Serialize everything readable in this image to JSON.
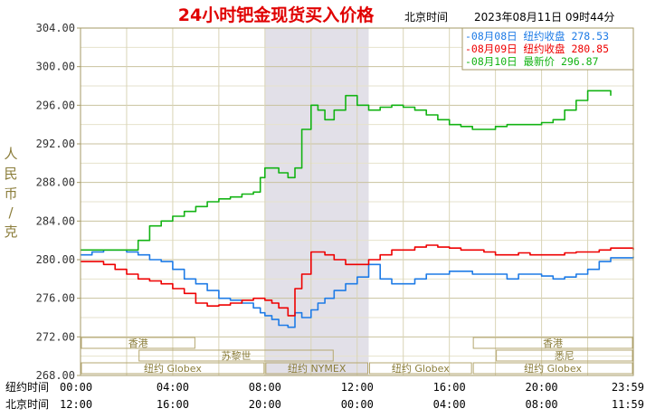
{
  "header": {
    "title": "24小时钯金现货买入价格",
    "tz_label": "北京时间",
    "datetime": "2023年08月11日 09时44分"
  },
  "legend": [
    {
      "marker": "-",
      "date": "08月08日",
      "label": "纽约收盘",
      "value": "278.53",
      "color": "#1e7be6"
    },
    {
      "marker": "-",
      "date": "08月09日",
      "label": "纽约收盘",
      "value": "280.85",
      "color": "#ee0000"
    },
    {
      "marker": "-",
      "date": "08月10日",
      "label": "最新价",
      "value": "296.87",
      "color": "#13b313"
    }
  ],
  "axes": {
    "ylabel": "人民币/克",
    "row1_label": "纽约时间",
    "row2_label": "北京时间"
  },
  "chart_data": {
    "type": "line",
    "ylim": [
      268,
      304
    ],
    "y_ticks": [
      "304.00",
      "300.00",
      "296.00",
      "292.00",
      "288.00",
      "284.00",
      "280.00",
      "276.00",
      "272.00",
      "268.00"
    ],
    "x_ticks_ny": [
      "00:00",
      "04:00",
      "08:00",
      "12:00",
      "16:00",
      "20:00",
      "23:59"
    ],
    "x_ticks_bj": [
      "12:00",
      "16:00",
      "20:00",
      "00:00",
      "04:00",
      "08:00",
      "11:59"
    ],
    "x_range_hours": [
      0,
      23.98
    ],
    "grid": true,
    "legend_position": "top-right",
    "highlight_hours": [
      8,
      12.5
    ],
    "highlight_color": "#e2e0e8",
    "sessions": {
      "row1": [
        {
          "name": "香港",
          "from": 0,
          "to": 5
        },
        {
          "name": "香港",
          "from": 17,
          "to": 24
        }
      ],
      "row2": [
        {
          "name": "苏黎世",
          "from": 2.5,
          "to": 11
        },
        {
          "name": "悉尼",
          "from": 18,
          "to": 24
        }
      ],
      "row3": [
        {
          "name": "纽约 Globex",
          "from": 0,
          "to": 8
        },
        {
          "name": "纽约 NYMEX",
          "from": 8,
          "to": 12.5
        },
        {
          "name": "纽约 Globex",
          "from": 12.5,
          "to": 17
        },
        {
          "name": "纽约 Globex",
          "from": 17,
          "to": 24
        }
      ]
    },
    "series": [
      {
        "name": "08月08日",
        "color": "#1e7be6",
        "x": [
          0,
          0.5,
          1,
          1.5,
          2,
          2.5,
          3,
          3.5,
          4,
          4.5,
          5,
          5.5,
          6,
          6.5,
          7,
          7.5,
          7.8,
          8,
          8.3,
          8.6,
          9,
          9.3,
          9.6,
          10,
          10.3,
          10.6,
          11,
          11.5,
          12,
          12.5,
          13,
          13.5,
          14,
          14.5,
          15,
          15.5,
          16,
          16.5,
          17,
          17.5,
          18,
          18.5,
          19,
          19.5,
          20,
          20.5,
          21,
          21.5,
          22,
          22.5,
          23,
          23.98
        ],
        "values": [
          280.5,
          280.8,
          281.0,
          281.0,
          280.8,
          280.5,
          280.0,
          279.8,
          279.0,
          278.0,
          277.5,
          276.8,
          276.0,
          275.8,
          275.5,
          275.0,
          274.5,
          274.2,
          273.8,
          273.2,
          273.0,
          274.5,
          274.0,
          274.8,
          275.5,
          276.0,
          276.8,
          277.5,
          278.2,
          279.5,
          278.0,
          277.5,
          277.5,
          278.0,
          278.5,
          278.5,
          278.8,
          278.8,
          278.5,
          278.5,
          278.5,
          278.0,
          278.5,
          278.5,
          278.3,
          278.0,
          278.2,
          278.5,
          279.0,
          279.8,
          280.2,
          280.3
        ]
      },
      {
        "name": "08月09日",
        "color": "#ee0000",
        "x": [
          0,
          0.5,
          1,
          1.5,
          2,
          2.5,
          3,
          3.5,
          4,
          4.5,
          5,
          5.5,
          6,
          6.5,
          7,
          7.5,
          8,
          8.3,
          8.6,
          9,
          9.3,
          9.6,
          10,
          10.3,
          10.6,
          11,
          11.5,
          12,
          12.5,
          13,
          13.5,
          14,
          14.5,
          15,
          15.5,
          16,
          16.5,
          17,
          17.5,
          18,
          18.5,
          19,
          19.5,
          20,
          20.5,
          21,
          21.5,
          22,
          22.5,
          23,
          23.98
        ],
        "values": [
          279.8,
          279.8,
          279.5,
          279.0,
          278.5,
          278.0,
          277.8,
          277.5,
          277.0,
          276.5,
          275.5,
          275.2,
          275.3,
          275.5,
          275.8,
          276.0,
          275.8,
          275.5,
          275.0,
          274.2,
          277.0,
          278.5,
          280.8,
          280.8,
          280.5,
          280.0,
          279.5,
          279.5,
          280.0,
          280.5,
          281.0,
          281.0,
          281.3,
          281.5,
          281.3,
          281.2,
          281.0,
          281.0,
          280.8,
          280.5,
          280.5,
          280.7,
          280.5,
          280.5,
          280.5,
          280.7,
          280.8,
          280.8,
          281.0,
          281.2,
          281.0
        ]
      },
      {
        "name": "08月10日",
        "color": "#13b313",
        "x": [
          0,
          0.5,
          1,
          1.5,
          2,
          2.5,
          3,
          3.5,
          4,
          4.5,
          5,
          5.5,
          6,
          6.5,
          7,
          7.5,
          7.8,
          8,
          8.3,
          8.6,
          9,
          9.3,
          9.6,
          10,
          10.3,
          10.6,
          11,
          11.5,
          12,
          12.5,
          13,
          13.5,
          14,
          14.5,
          15,
          15.5,
          16,
          16.5,
          17,
          17.5,
          18,
          18.5,
          19,
          19.5,
          20,
          20.5,
          21,
          21.5,
          22,
          22.5,
          23
        ],
        "values": [
          281.0,
          281.0,
          281.0,
          281.0,
          281.0,
          282.0,
          283.5,
          284.0,
          284.5,
          285.0,
          285.5,
          286.0,
          286.3,
          286.5,
          286.8,
          287.0,
          288.5,
          289.5,
          289.5,
          289.0,
          288.5,
          289.5,
          293.5,
          296.0,
          295.5,
          294.5,
          295.5,
          297.0,
          296.0,
          295.5,
          295.8,
          296.0,
          295.8,
          295.5,
          295.0,
          294.5,
          294.0,
          293.8,
          293.5,
          293.5,
          293.8,
          294.0,
          294.0,
          294.0,
          294.2,
          294.5,
          295.5,
          296.5,
          297.5,
          297.5,
          297.0
        ]
      }
    ]
  }
}
